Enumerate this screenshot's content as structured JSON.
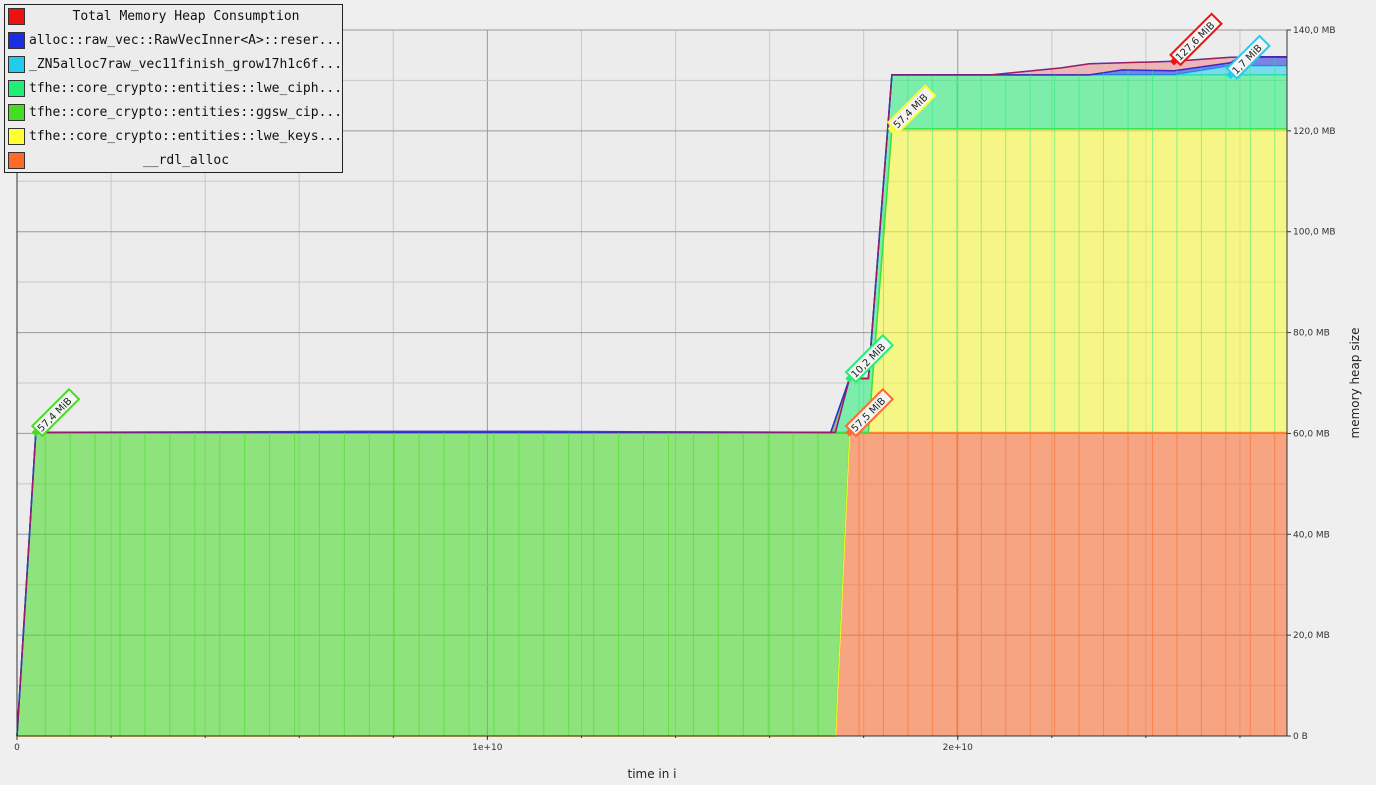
{
  "chart_data": {
    "type": "area",
    "stacked": true,
    "title": "",
    "xlabel": "time in i",
    "ylabel": "memory heap size",
    "xlim": [
      0,
      27000000000
    ],
    "ylim": [
      0,
      140
    ],
    "y_unit": "MB",
    "x_ticks": [
      {
        "value": 0,
        "label": "0"
      },
      {
        "value": 10000000000,
        "label": "1e+10"
      },
      {
        "value": 20000000000,
        "label": "2e+10"
      }
    ],
    "y_ticks": [
      {
        "value": 0,
        "label": "0 B"
      },
      {
        "value": 20,
        "label": "20,0 MB"
      },
      {
        "value": 40,
        "label": "40,0 MB"
      },
      {
        "value": 60,
        "label": "60,0 MB"
      },
      {
        "value": 80,
        "label": "80,0 MB"
      },
      {
        "value": 100,
        "label": "100,0 MB"
      },
      {
        "value": 120,
        "label": "120,0 MB"
      },
      {
        "value": 140,
        "label": "140,0 MB"
      }
    ],
    "grid": true,
    "legend_position": "top-left",
    "series": [
      {
        "name": "__rdl_alloc",
        "color": "#ff6a2a",
        "points": [
          [
            0,
            0
          ],
          [
            17400000000,
            0
          ],
          [
            17700000000,
            60.2
          ],
          [
            27000000000,
            60.2
          ]
        ]
      },
      {
        "name": "tfhe::core_crypto::entities::lwe_keys...",
        "color": "#ffff33",
        "points": [
          [
            0,
            0
          ],
          [
            17400000000,
            0
          ],
          [
            17700000000,
            0
          ],
          [
            18100000000,
            0
          ],
          [
            18600000000,
            60.2
          ],
          [
            27000000000,
            60.2
          ]
        ]
      },
      {
        "name": "tfhe::core_crypto::entities::ggsw_cip...",
        "color": "#44dd22",
        "points": [
          [
            0,
            0
          ],
          [
            400000000,
            60.2
          ],
          [
            17400000000,
            60.2
          ],
          [
            17700000000,
            0
          ],
          [
            27000000000,
            0
          ]
        ]
      },
      {
        "name": "tfhe::core_crypto::entities::lwe_ciph...",
        "color": "#22ee77",
        "points": [
          [
            0,
            0
          ],
          [
            17300000000,
            0
          ],
          [
            17700000000,
            10.7
          ],
          [
            18100000000,
            10.7
          ],
          [
            18600000000,
            10.7
          ],
          [
            27000000000,
            10.7
          ]
        ]
      },
      {
        "name": "_ZN5alloc7raw_vec11finish_grow17h1c6f...",
        "color": "#22ccee",
        "points": [
          [
            0,
            0
          ],
          [
            24600000000,
            0
          ],
          [
            25800000000,
            1.8
          ],
          [
            27000000000,
            1.8
          ]
        ]
      },
      {
        "name": "alloc::raw_vec::RawVecInner<A>::reser...",
        "color": "#1a2ee0",
        "points": [
          [
            0,
            0
          ],
          [
            22800000000,
            0
          ],
          [
            23500000000,
            1.0
          ],
          [
            25800000000,
            0.6
          ],
          [
            26000000000,
            1.8
          ],
          [
            27000000000,
            1.8
          ]
        ]
      },
      {
        "name": "Total Memory Heap Consumption",
        "color": "#ee1111",
        "points": [
          [
            0,
            0
          ],
          [
            400000000,
            60.2
          ],
          [
            7300000000,
            60.4
          ],
          [
            11200000000,
            60.4
          ],
          [
            17400000000,
            60.2
          ],
          [
            17700000000,
            70.9
          ],
          [
            18100000000,
            70.9
          ],
          [
            18600000000,
            131.1
          ],
          [
            20700000000,
            131.1
          ],
          [
            22200000000,
            132.5
          ],
          [
            22800000000,
            133.3
          ],
          [
            24600000000,
            133.8
          ],
          [
            25800000000,
            134.6
          ],
          [
            27000000000,
            134.6
          ]
        ]
      }
    ],
    "annotations": [
      {
        "text": "57,4 MiB",
        "x": 400000000,
        "y": 60.2,
        "color": "#44dd22"
      },
      {
        "text": "57,5 MiB",
        "x": 17700000000,
        "y": 60.2,
        "color": "#ff6a2a"
      },
      {
        "text": "10,2 MiB",
        "x": 17700000000,
        "y": 70.9,
        "color": "#22ee77"
      },
      {
        "text": "57,4 MiB",
        "x": 18600000000,
        "y": 120.4,
        "color": "#ffff33"
      },
      {
        "text": "127,6 MiB",
        "x": 24600000000,
        "y": 133.8,
        "color": "#ee1111"
      },
      {
        "text": "1,7 MiB",
        "x": 25800000000,
        "y": 131.1,
        "color": "#22ccee"
      }
    ]
  },
  "legend": {
    "items": [
      {
        "label": "Total Memory Heap Consumption",
        "color": "#ee1111",
        "centered": true
      },
      {
        "label": "alloc::raw_vec::RawVecInner<A>::reser...",
        "color": "#1a2ee0"
      },
      {
        "label": "_ZN5alloc7raw_vec11finish_grow17h1c6f...",
        "color": "#22ccee"
      },
      {
        "label": "tfhe::core_crypto::entities::lwe_ciph...",
        "color": "#22ee77"
      },
      {
        "label": "tfhe::core_crypto::entities::ggsw_cip...",
        "color": "#44dd22"
      },
      {
        "label": "tfhe::core_crypto::entities::lwe_keys...",
        "color": "#ffff33"
      },
      {
        "label": "__rdl_alloc",
        "color": "#ff6a2a",
        "centered": true
      }
    ]
  }
}
